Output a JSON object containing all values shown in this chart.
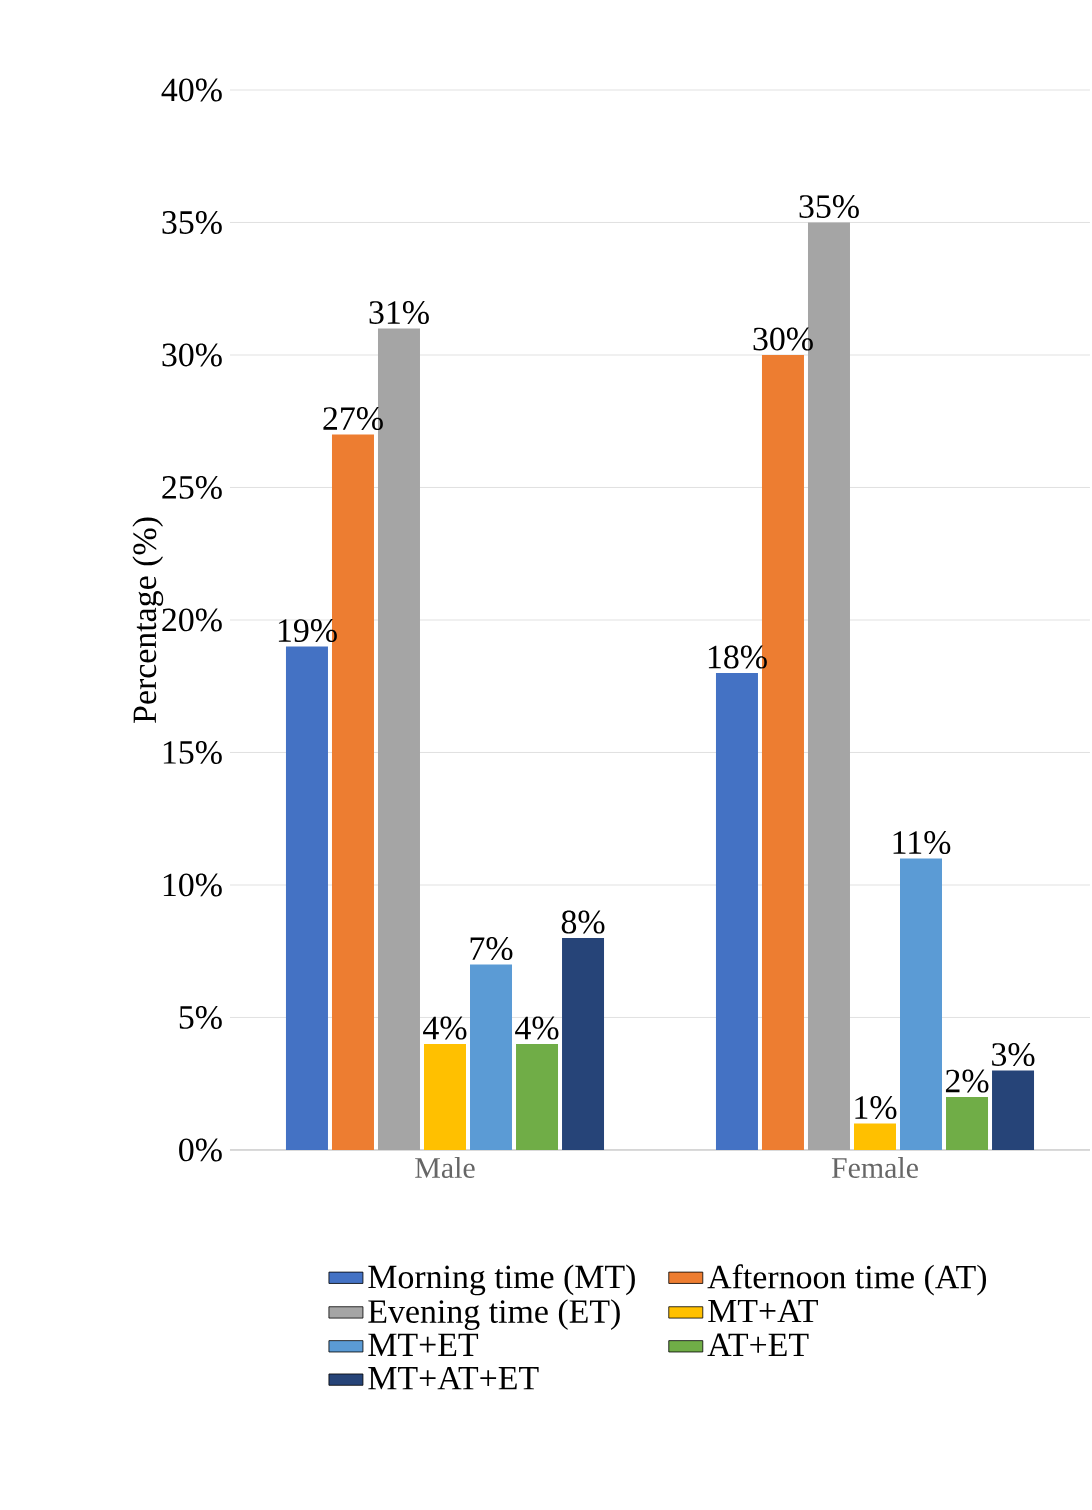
{
  "chart_data": {
    "type": "bar",
    "ylabel": "Percentage (%)",
    "categories": [
      "Male",
      "Female"
    ],
    "series": [
      {
        "name": "Morning time (MT)",
        "color": "#4472c4",
        "values": [
          19,
          18
        ],
        "value_labels": [
          "19%",
          "18%"
        ]
      },
      {
        "name": "Afternoon time (AT)",
        "color": "#ed7d31",
        "values": [
          27,
          30
        ],
        "value_labels": [
          "27%",
          "30%"
        ]
      },
      {
        "name": "Evening time (ET)",
        "color": "#a5a5a5",
        "values": [
          31,
          35
        ],
        "value_labels": [
          "31%",
          "35%"
        ]
      },
      {
        "name": "MT+AT",
        "color": "#ffc000",
        "values": [
          4,
          1
        ],
        "value_labels": [
          "4%",
          "1%"
        ]
      },
      {
        "name": "MT+ET",
        "color": "#5b9bd5",
        "values": [
          7,
          11
        ],
        "value_labels": [
          "7%",
          "11%"
        ]
      },
      {
        "name": "AT+ET",
        "color": "#70ad47",
        "values": [
          4,
          2
        ],
        "value_labels": [
          "4%",
          "2%"
        ]
      },
      {
        "name": "MT+AT+ET",
        "color": "#264478",
        "values": [
          8,
          3
        ],
        "value_labels": [
          "8%",
          "3%"
        ]
      }
    ],
    "ylim": [
      0,
      40
    ],
    "yticks": [
      {
        "value": 0,
        "label": "0%"
      },
      {
        "value": 5,
        "label": "5%"
      },
      {
        "value": 10,
        "label": "10%"
      },
      {
        "value": 15,
        "label": "15%"
      },
      {
        "value": 20,
        "label": "20%"
      },
      {
        "value": 25,
        "label": "25%"
      },
      {
        "value": 30,
        "label": "30%"
      },
      {
        "value": 35,
        "label": "35%"
      },
      {
        "value": 40,
        "label": "40%"
      }
    ],
    "grid": "y",
    "legend": "bottom"
  }
}
